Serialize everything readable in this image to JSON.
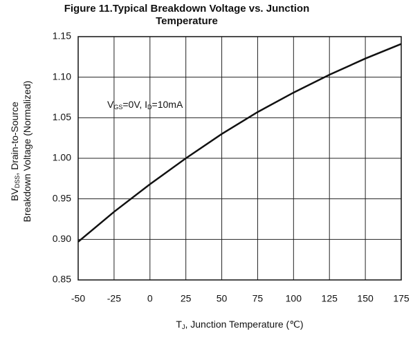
{
  "chart_data": {
    "type": "line",
    "title": "Figure 11.Typical Breakdown Voltage vs. Junction Temperature",
    "xlabel": [
      "T",
      "J",
      ", Junction Temperature (℃)"
    ],
    "ylabel": [
      [
        "BV",
        "DSS",
        ", Drain-to-Source"
      ],
      [
        "Breakdown Voltage (Normalized)"
      ]
    ],
    "annotation": [
      "V",
      "GS",
      "=0V, I",
      "D",
      "=10mA"
    ],
    "x": [
      -50,
      -25,
      0,
      25,
      50,
      75,
      100,
      125,
      150,
      175
    ],
    "series": [
      {
        "color": "#111111",
        "values": [
          0.897,
          0.934,
          0.968,
          1.0,
          1.03,
          1.057,
          1.081,
          1.103,
          1.123,
          1.141
        ]
      }
    ],
    "xlim": [
      -50,
      175
    ],
    "xticks": [
      -50,
      -25,
      0,
      25,
      50,
      75,
      100,
      125,
      150,
      175
    ],
    "ylim": [
      0.85,
      1.15
    ],
    "yticks": [
      {
        "value": 0.85,
        "label": "0.85"
      },
      {
        "value": 0.9,
        "label": "0.90"
      },
      {
        "value": 0.95,
        "label": "0.95"
      },
      {
        "value": 1.0,
        "label": "1.00"
      },
      {
        "value": 1.05,
        "label": "1.05"
      },
      {
        "value": 1.1,
        "label": "1.10"
      },
      {
        "value": 1.15,
        "label": "1.15"
      }
    ],
    "grid": true
  }
}
